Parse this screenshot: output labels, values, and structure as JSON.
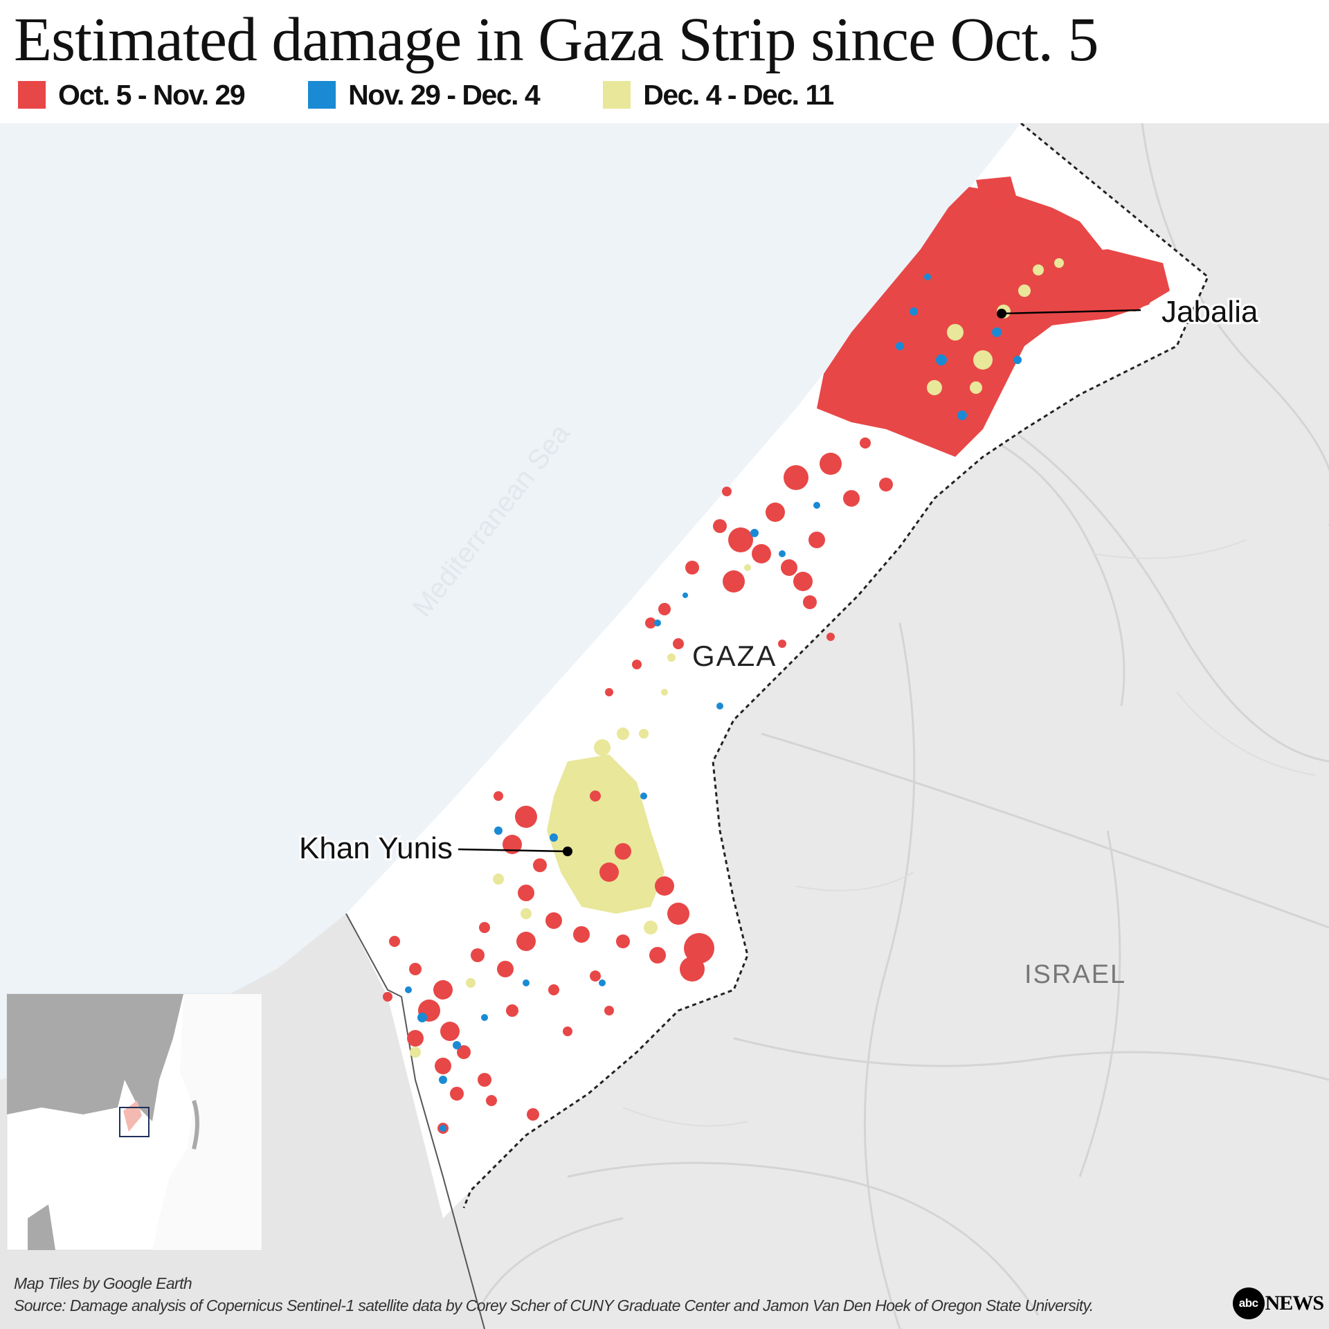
{
  "title": "Estimated damage in Gaza Strip since Oct. 5",
  "legend": [
    {
      "label": "Oct. 5 - Nov. 29",
      "color": "#e84747"
    },
    {
      "label": "Nov. 29 - Dec. 4",
      "color": "#1a8ad4"
    },
    {
      "label": "Dec. 4 - Dec. 11",
      "color": "#e8e79a"
    }
  ],
  "map": {
    "sea_label": "Mediterranean Sea",
    "region_label": "GAZA",
    "country_label": "ISRAEL",
    "cities": [
      {
        "name": "Jabalia"
      },
      {
        "name": "Khan Yunis"
      }
    ],
    "colors": {
      "sea": "#eef3f8",
      "land": "#e9e9e9",
      "strip": "#ffffff",
      "border": "#222222",
      "roads": "#d3d3d3"
    }
  },
  "footer": {
    "tiles_credit": "Map Tiles by Google Earth",
    "source": "Source: Damage analysis of Copernicus Sentinel-1 satellite data by Corey Scher of CUNY Graduate Center and Jamon Van Den Hoek of Oregon State University."
  },
  "logo": {
    "circle_text": "abc",
    "text": "NEWS"
  }
}
